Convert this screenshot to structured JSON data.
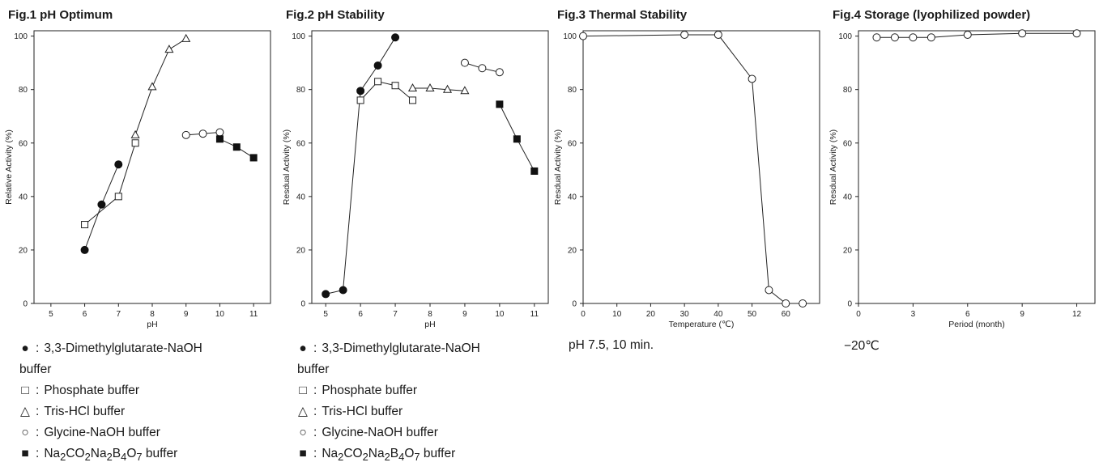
{
  "chart_data": [
    {
      "type": "scatter",
      "title": "Fig.1 pH Optimum",
      "xlabel": "pH",
      "ylabel": "Relative Activity (%)",
      "xlim": [
        4.5,
        11.5
      ],
      "ylim": [
        0,
        100
      ],
      "xticks": [
        5,
        6,
        7,
        8,
        9,
        10,
        11
      ],
      "yticks": [
        0,
        20,
        40,
        60,
        80,
        100
      ],
      "grid": false,
      "series": [
        {
          "name": "3,3-Dimethylglutarate-NaOH buffer",
          "marker": "filled-circle",
          "x": [
            6,
            6.5,
            7
          ],
          "y": [
            20,
            37,
            52
          ]
        },
        {
          "name": "Phosphate buffer",
          "marker": "open-square",
          "x": [
            6,
            7,
            7.5
          ],
          "y": [
            29.5,
            40,
            60
          ]
        },
        {
          "name": "Tris-HCl buffer",
          "marker": "open-triangle",
          "x": [
            7.5,
            8,
            8.5,
            9
          ],
          "y": [
            63,
            81,
            95,
            99
          ]
        },
        {
          "name": "Glycine-NaOH buffer",
          "marker": "open-circle",
          "x": [
            9,
            9.5,
            10
          ],
          "y": [
            63,
            63.5,
            64
          ]
        },
        {
          "name": "Na2CO2Na2B4O7 buffer",
          "marker": "filled-square",
          "x": [
            10,
            10.5,
            11
          ],
          "y": [
            61.5,
            58.5,
            54.5
          ]
        }
      ],
      "legend": [
        {
          "symbol": "●",
          "label": "3,3-Dimethylglutarate-NaOH",
          "cont": "buffer"
        },
        {
          "symbol": "□",
          "label": "Phosphate buffer"
        },
        {
          "symbol": "△",
          "label": "Tris-HCl buffer"
        },
        {
          "symbol": "○",
          "label": "Glycine-NaOH buffer"
        },
        {
          "symbol": "■",
          "label_html": "Na<sub>2</sub>CO<sub>2</sub>Na<sub>2</sub>B<sub>4</sub>O<sub>7</sub>  buffer"
        }
      ]
    },
    {
      "type": "scatter",
      "title": "Fig.2 pH Stability",
      "xlabel": "pH",
      "ylabel": "Resdual Activity (%)",
      "xlim": [
        4.6,
        11.4
      ],
      "ylim": [
        0,
        100
      ],
      "xticks": [
        5,
        6,
        7,
        8,
        9,
        10,
        11
      ],
      "yticks": [
        0,
        20,
        40,
        60,
        80,
        100
      ],
      "grid": false,
      "series": [
        {
          "name": "3,3-Dimethylglutarate-NaOH buffer",
          "marker": "filled-circle",
          "x": [
            5,
            5.5,
            6,
            6.5,
            7
          ],
          "y": [
            3.5,
            5,
            79.5,
            89,
            99.5
          ]
        },
        {
          "name": "Phosphate buffer",
          "marker": "open-square",
          "x": [
            6,
            6.5,
            7,
            7.5
          ],
          "y": [
            76,
            83,
            81.5,
            76
          ]
        },
        {
          "name": "Tris-HCl buffer",
          "marker": "open-triangle",
          "x": [
            7.5,
            8,
            8.5,
            9
          ],
          "y": [
            80.5,
            80.5,
            80,
            79.5
          ]
        },
        {
          "name": "Glycine-NaOH buffer",
          "marker": "open-circle",
          "x": [
            9,
            9.5,
            10
          ],
          "y": [
            90,
            88,
            86.5
          ]
        },
        {
          "name": "Na2CO2Na2B4O7 buffer",
          "marker": "filled-square",
          "x": [
            10,
            10.5,
            11
          ],
          "y": [
            74.5,
            61.5,
            49.5
          ]
        }
      ],
      "legend": [
        {
          "symbol": "●",
          "label": "3,3-Dimethylglutarate-NaOH",
          "cont": "buffer"
        },
        {
          "symbol": "□",
          "label": "Phosphate buffer"
        },
        {
          "symbol": "△",
          "label": "Tris-HCl buffer"
        },
        {
          "symbol": "○",
          "label": "Glycine-NaOH buffer"
        },
        {
          "symbol": "■",
          "label_html": "Na<sub>2</sub>CO<sub>2</sub>Na<sub>2</sub>B<sub>4</sub>O<sub>7</sub>  buffer"
        }
      ]
    },
    {
      "type": "line",
      "title": "Fig.3 Thermal Stability",
      "xlabel": "Temperature (℃)",
      "ylabel": "Resdual Activity (%)",
      "xlim": [
        0,
        70
      ],
      "ylim": [
        0,
        100
      ],
      "xticks": [
        0,
        10,
        20,
        30,
        40,
        50,
        60
      ],
      "yticks": [
        0,
        20,
        40,
        60,
        80,
        100
      ],
      "grid": false,
      "series": [
        {
          "name": "",
          "marker": "open-circle",
          "x": [
            0,
            30,
            40,
            50,
            55,
            60,
            65
          ],
          "y": [
            100,
            100.5,
            100.5,
            84,
            5,
            0,
            0
          ]
        }
      ],
      "note": "pH 7.5, 10 min."
    },
    {
      "type": "line",
      "title": "Fig.4 Storage (lyophilized powder)",
      "xlabel": "Period (month)",
      "ylabel": "Resdual Activity (%)",
      "xlim": [
        0,
        13
      ],
      "ylim": [
        0,
        100
      ],
      "xticks": [
        0,
        3,
        6,
        9,
        12
      ],
      "yticks": [
        0,
        20,
        40,
        60,
        80,
        100
      ],
      "grid": false,
      "series": [
        {
          "name": "",
          "marker": "open-circle",
          "x": [
            1,
            2,
            3,
            4,
            6,
            9,
            12
          ],
          "y": [
            99.5,
            99.5,
            99.5,
            99.5,
            100.5,
            101,
            101
          ]
        }
      ],
      "note": "−20℃"
    }
  ]
}
